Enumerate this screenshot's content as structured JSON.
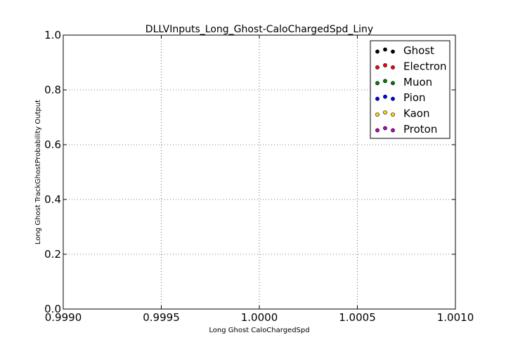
{
  "chart_data": {
    "type": "scatter",
    "title": "DLLVInputs_Long_Ghost-CaloChargedSpd_Liny",
    "xlabel": "Long Ghost CaloChargedSpd",
    "ylabel": "Long Ghost TrackGhostProbability Output",
    "xlim": [
      0.999,
      1.001
    ],
    "ylim": [
      0.0,
      1.0
    ],
    "x_ticks": [
      "0.9990",
      "0.9995",
      "1.0000",
      "1.0005",
      "1.0010"
    ],
    "y_ticks": [
      "0.0",
      "0.2",
      "0.4",
      "0.6",
      "0.8",
      "1.0"
    ],
    "grid": true,
    "legend_position": "top-right",
    "series": [
      {
        "name": "Ghost",
        "color": "#000000",
        "x": [],
        "y": []
      },
      {
        "name": "Electron",
        "color": "#ff0000",
        "x": [],
        "y": []
      },
      {
        "name": "Muon",
        "color": "#008000",
        "x": [],
        "y": []
      },
      {
        "name": "Pion",
        "color": "#0000ff",
        "x": [],
        "y": []
      },
      {
        "name": "Kaon",
        "color": "#ffd700",
        "x": [],
        "y": []
      },
      {
        "name": "Proton",
        "color": "#bf00bf",
        "x": [],
        "y": []
      }
    ]
  }
}
